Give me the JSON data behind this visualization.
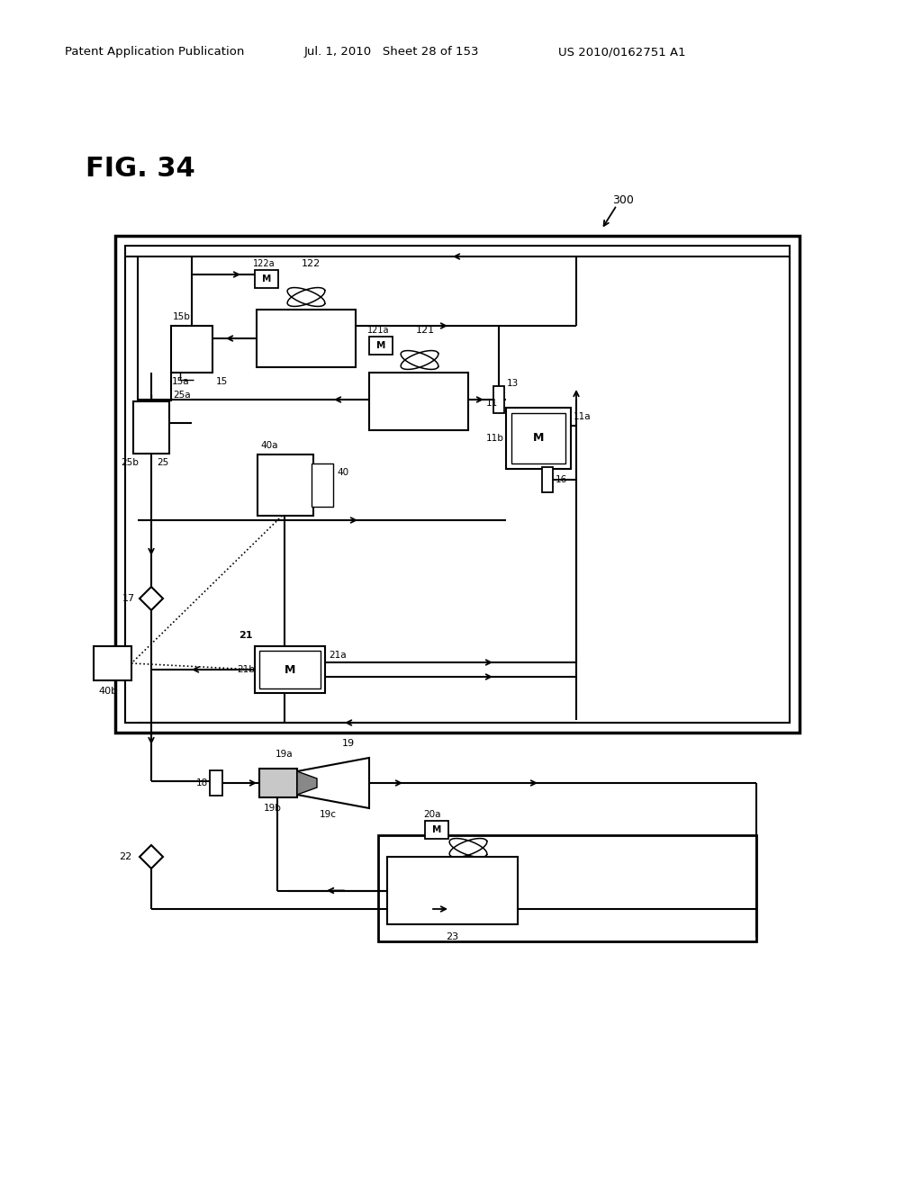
{
  "header_left": "Patent Application Publication",
  "header_mid": "Jul. 1, 2010   Sheet 28 of 153",
  "header_right": "US 2010/0162751 A1",
  "fig_label": "FIG. 34",
  "background": "#ffffff"
}
